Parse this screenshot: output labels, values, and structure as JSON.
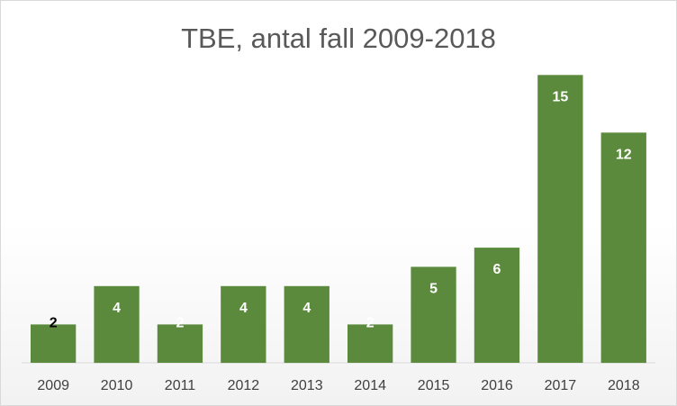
{
  "chart_data": {
    "type": "bar",
    "title": "TBE, antal fall 2009-2018",
    "xlabel": "",
    "ylabel": "",
    "categories": [
      "2009",
      "2010",
      "2011",
      "2012",
      "2013",
      "2014",
      "2015",
      "2016",
      "2017",
      "2018"
    ],
    "values": [
      2,
      4,
      2,
      4,
      4,
      2,
      5,
      6,
      15,
      12
    ],
    "ylim": [
      0,
      16
    ],
    "grid": false,
    "legend": "none",
    "bar_color": "#5b8a3c",
    "label_color_inside": "#ffffff",
    "label_color_small": "#000000"
  }
}
